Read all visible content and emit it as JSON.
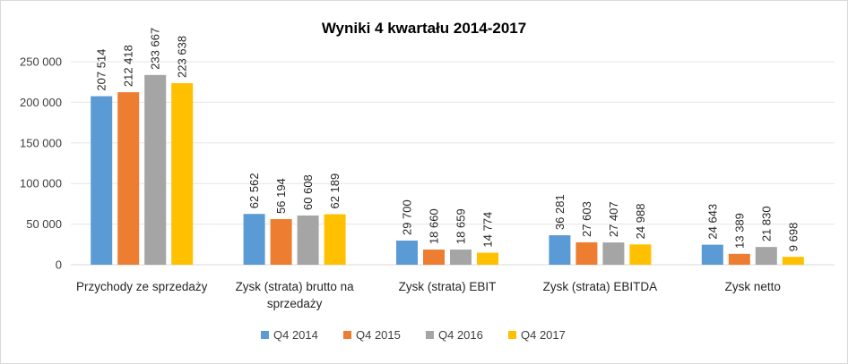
{
  "chart_data": {
    "type": "bar",
    "title": "Wyniki 4 kwartału 2014-2017",
    "xlabel": "",
    "ylabel": "",
    "ylim": [
      0,
      250000
    ],
    "yticks": [
      "0",
      "50 000",
      "100 000",
      "150 000",
      "200 000",
      "250 000"
    ],
    "ytick_values": [
      0,
      50000,
      100000,
      150000,
      200000,
      250000
    ],
    "grid": true,
    "legend_position": "bottom",
    "categories": [
      [
        "Przychody ze sprzedaży"
      ],
      [
        "Zysk (strata) brutto na",
        "sprzedaży"
      ],
      [
        "Zysk (strata) EBIT"
      ],
      [
        "Zysk (strata) EBITDA"
      ],
      [
        "Zysk netto"
      ]
    ],
    "series": [
      {
        "name": "Q4 2014",
        "color": "#5b9bd5",
        "values": [
          207514,
          62562,
          29700,
          36281,
          24643
        ],
        "labels": [
          "207 514",
          "62 562",
          "29 700",
          "36 281",
          "24 643"
        ]
      },
      {
        "name": "Q4 2015",
        "color": "#ed7d31",
        "values": [
          212418,
          56194,
          18660,
          27603,
          13389
        ],
        "labels": [
          "212 418",
          "56 194",
          "18 660",
          "27 603",
          "13 389"
        ]
      },
      {
        "name": "Q4 2016",
        "color": "#a5a5a5",
        "values": [
          233667,
          60608,
          18659,
          27407,
          21830
        ],
        "labels": [
          "233 667",
          "60 608",
          "18 659",
          "27 407",
          "21 830"
        ]
      },
      {
        "name": "Q4 2017",
        "color": "#ffc000",
        "values": [
          223638,
          62189,
          14774,
          24988,
          9698
        ],
        "labels": [
          "223 638",
          "62 189",
          "14 774",
          "24 988",
          "9 698"
        ]
      }
    ]
  }
}
